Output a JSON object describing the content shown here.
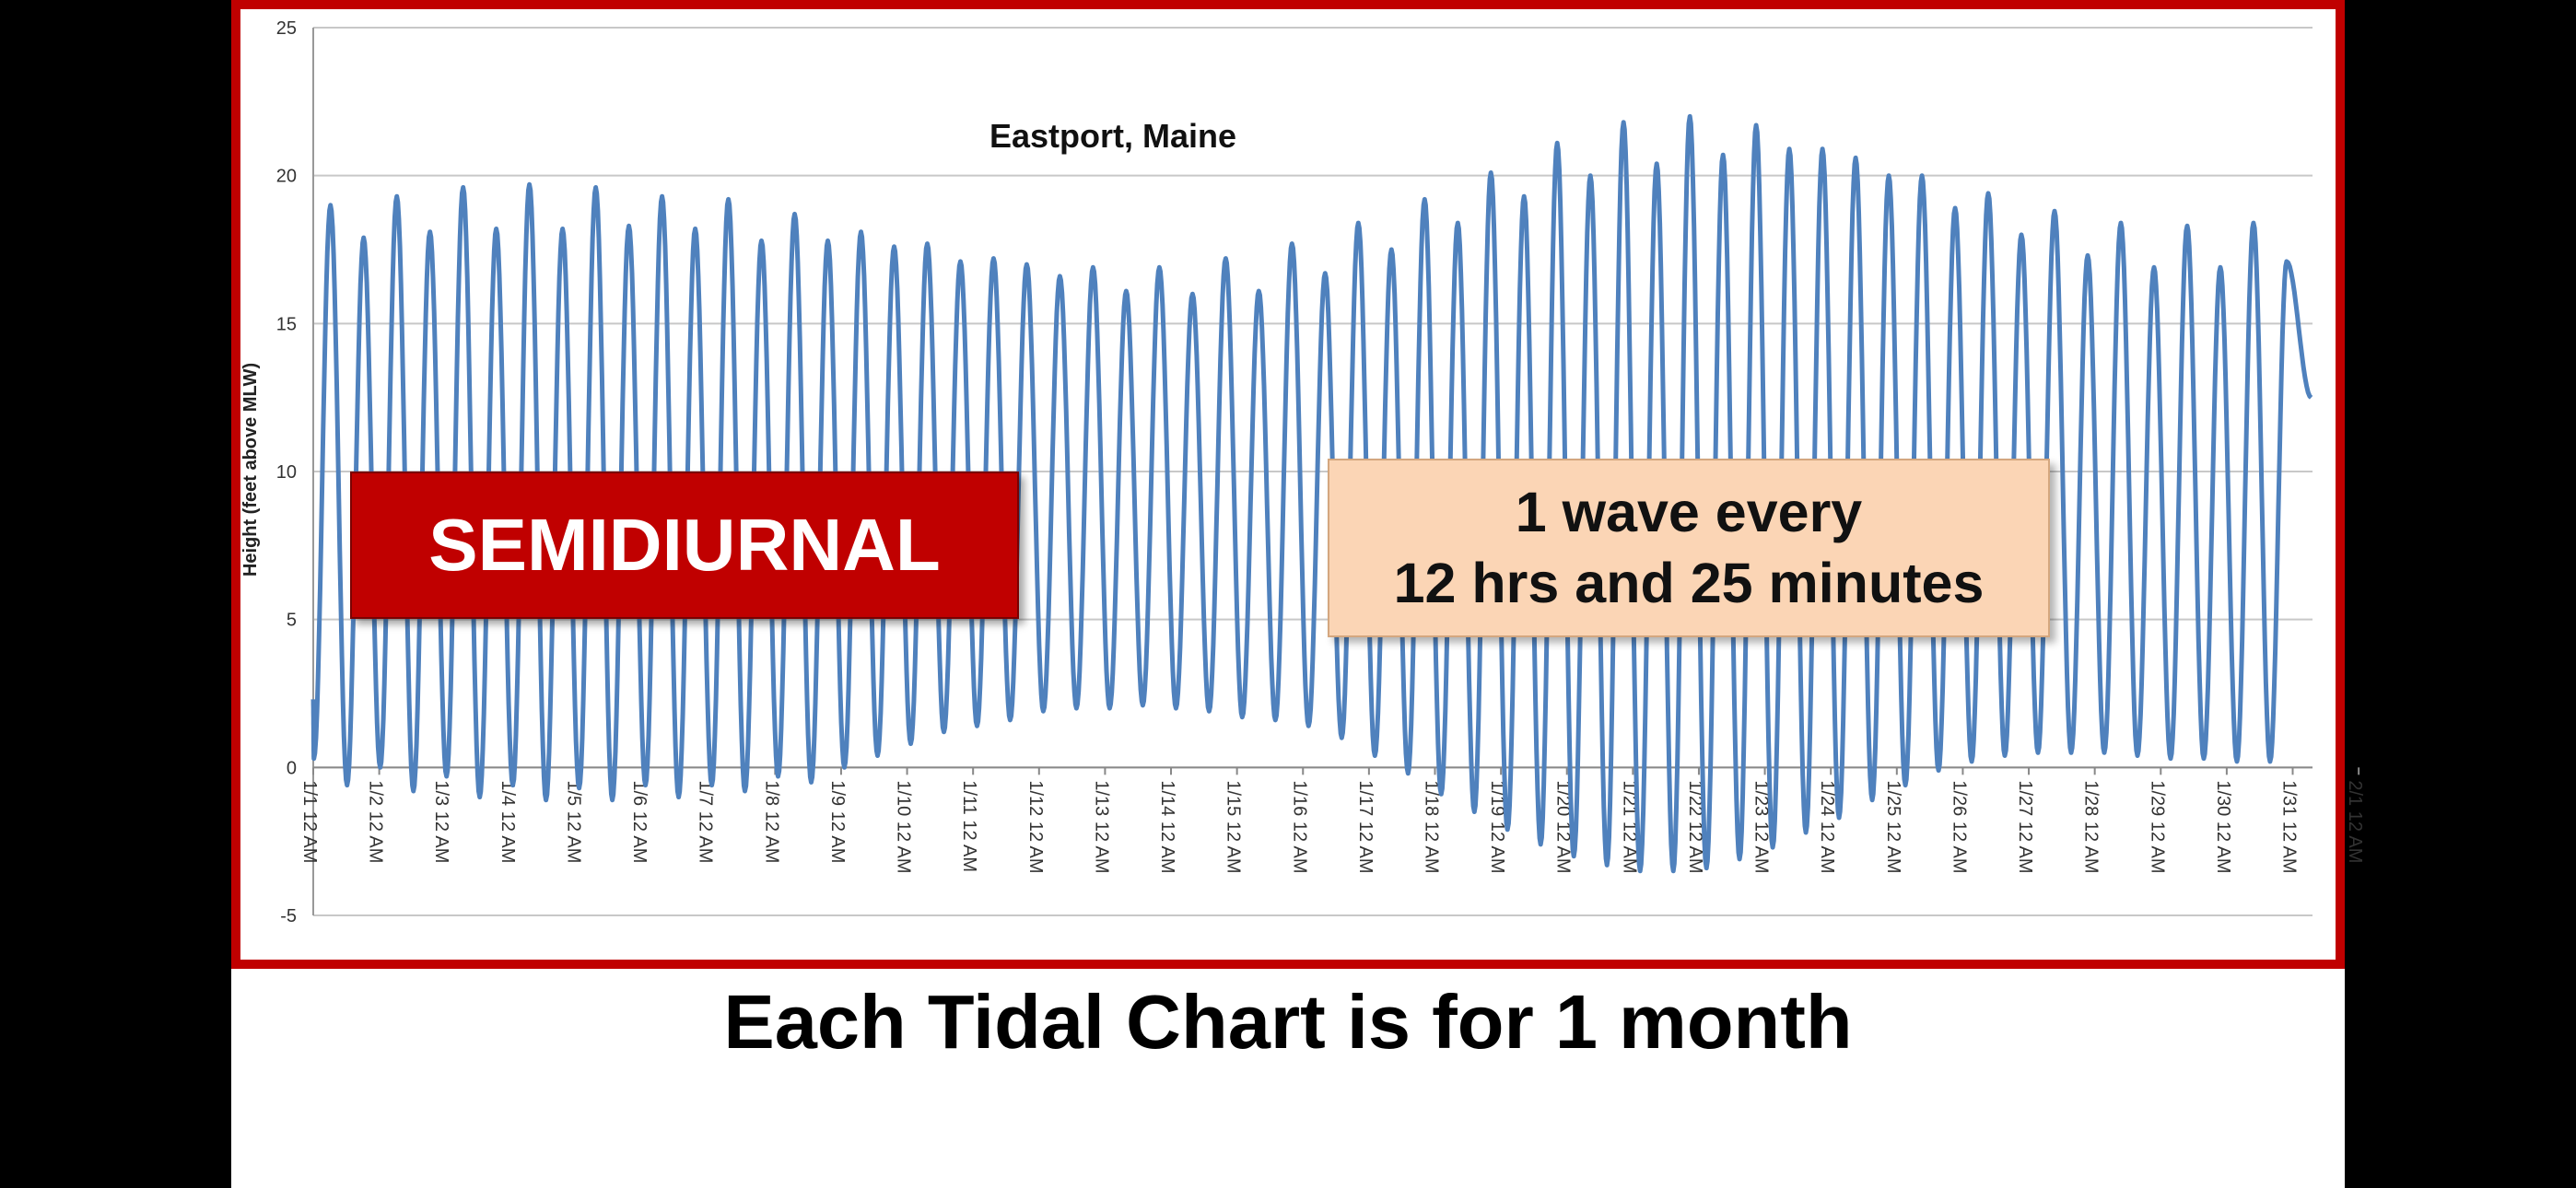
{
  "slide": {
    "caption": "Each Tidal Chart is for 1 month",
    "semidiurnal_label": "SEMIDIURNAL",
    "wave_note_line1": "1 wave every",
    "wave_note_line2": "12 hrs and 25 minutes"
  },
  "colors": {
    "frame": "#c00000",
    "series": "#4f81bd",
    "gridline": "#c8c8c8",
    "semidiurnal_bg": "#c00000",
    "wave_note_bg": "#fbd5b5"
  },
  "chart_data": {
    "type": "line",
    "title": "Eastport, Maine",
    "xlabel": "",
    "ylabel": "Height (feet above MLW)",
    "ylim": [
      -5,
      25
    ],
    "yticks": [
      -5,
      0,
      5,
      10,
      15,
      20,
      25
    ],
    "grid": true,
    "legend": "none",
    "x_range_days": [
      0,
      30.3
    ],
    "x_tick_labels": [
      "1/1 12 AM",
      "1/2 12 AM",
      "1/3 12 AM",
      "1/4 12 AM",
      "1/5 12 AM",
      "1/6 12 AM",
      "1/7 12 AM",
      "1/8 12 AM",
      "1/9 12 AM",
      "1/10 12 AM",
      "1/11 12 AM",
      "1/12 12 AM",
      "1/13 12 AM",
      "1/14 12 AM",
      "1/15 12 AM",
      "1/16 12 AM",
      "1/17 12 AM",
      "1/18 12 AM",
      "1/19 12 AM",
      "1/20 12 AM",
      "1/21 12 AM",
      "1/22 12 AM",
      "1/23 12 AM",
      "1/24 12 AM",
      "1/25 12 AM",
      "1/26 12 AM",
      "1/27 12 AM",
      "1/28 12 AM",
      "1/29 12 AM",
      "1/30 12 AM",
      "1/31 12 AM",
      "2/1 12 AM"
    ],
    "series": [
      {
        "name": "",
        "description": "semidiurnal tide, one high every ~12.42 h",
        "high_tides": [
          19.0,
          17.9,
          19.3,
          18.1,
          19.6,
          18.2,
          19.7,
          18.2,
          19.6,
          18.3,
          19.3,
          18.2,
          19.2,
          17.8,
          18.7,
          17.8,
          18.1,
          17.6,
          17.7,
          17.1,
          17.2,
          17.0,
          16.6,
          16.9,
          16.1,
          16.9,
          16.0,
          17.2,
          16.1,
          17.7,
          16.7,
          18.4,
          17.5,
          19.2,
          18.4,
          20.1,
          19.3,
          21.1,
          20.0,
          21.8,
          20.4,
          22.0,
          20.7,
          21.7,
          20.9,
          20.9,
          20.6,
          20.0,
          20.0,
          18.9,
          19.4,
          18.0,
          18.8,
          17.3,
          18.4,
          16.9,
          18.3,
          16.9,
          18.4,
          17.1
        ],
        "low_tides": [
          0.3,
          -0.6,
          0.0,
          -0.8,
          -0.3,
          -1.0,
          -0.6,
          -1.1,
          -0.7,
          -1.1,
          -0.6,
          -1.0,
          -0.6,
          -0.8,
          -0.3,
          -0.5,
          0.0,
          0.4,
          0.8,
          1.2,
          1.4,
          1.6,
          1.9,
          2.0,
          2.0,
          2.1,
          2.0,
          1.9,
          1.7,
          1.6,
          1.4,
          1.0,
          0.4,
          -0.2,
          -0.9,
          -1.5,
          -2.1,
          -2.6,
          -3.0,
          -3.3,
          -3.5,
          -3.5,
          -3.4,
          -3.1,
          -2.7,
          -2.2,
          -1.7,
          -1.1,
          -0.6,
          -0.1,
          0.2,
          0.4,
          0.5,
          0.5,
          0.5,
          0.4,
          0.3,
          0.3,
          0.2,
          0.2
        ],
        "first_value": 2.3,
        "last_value": 12.5
      }
    ]
  }
}
